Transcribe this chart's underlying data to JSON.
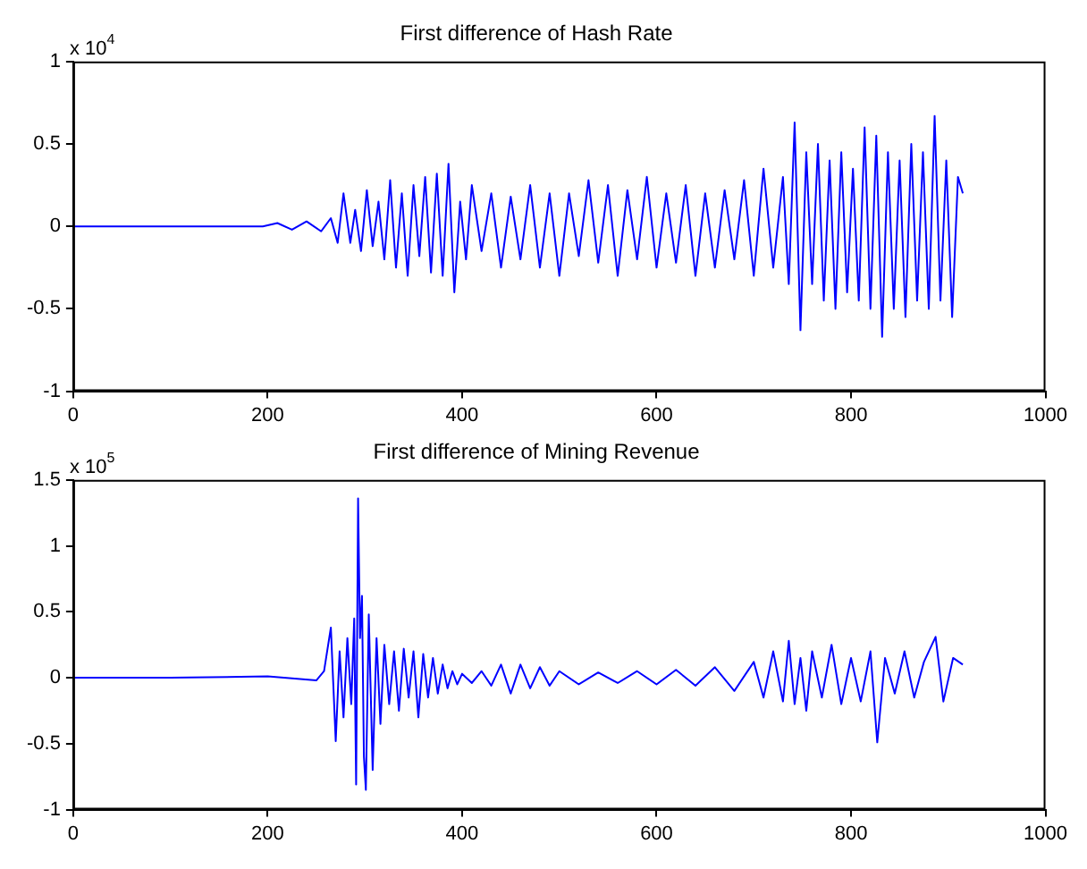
{
  "chart_data": [
    {
      "type": "line",
      "title": "First difference of Hash Rate",
      "annotations": [
        "x 10$^{4}$"
      ],
      "x": [
        0,
        100,
        195,
        210,
        225,
        240,
        255,
        265,
        272,
        278,
        285,
        290,
        296,
        302,
        308,
        314,
        320,
        326,
        332,
        338,
        344,
        350,
        356,
        362,
        368,
        374,
        380,
        386,
        392,
        398,
        404,
        410,
        420,
        430,
        440,
        450,
        460,
        470,
        480,
        490,
        500,
        510,
        520,
        530,
        540,
        550,
        560,
        570,
        580,
        590,
        600,
        610,
        620,
        630,
        640,
        650,
        660,
        670,
        680,
        690,
        700,
        710,
        720,
        730,
        736,
        742,
        748,
        754,
        760,
        766,
        772,
        778,
        784,
        790,
        796,
        802,
        808,
        814,
        820,
        826,
        832,
        838,
        844,
        850,
        856,
        862,
        868,
        874,
        880,
        886,
        892,
        898,
        904,
        910,
        915
      ],
      "series": [
        {
          "color": "#0000ff",
          "values": [
            0,
            0,
            0,
            0.02,
            -0.02,
            0.03,
            -0.03,
            0.05,
            -0.1,
            0.2,
            -0.1,
            0.1,
            -0.15,
            0.22,
            -0.12,
            0.15,
            -0.2,
            0.28,
            -0.25,
            0.2,
            -0.3,
            0.25,
            -0.18,
            0.3,
            -0.28,
            0.32,
            -0.3,
            0.38,
            -0.4,
            0.15,
            -0.2,
            0.25,
            -0.15,
            0.2,
            -0.25,
            0.18,
            -0.2,
            0.25,
            -0.25,
            0.2,
            -0.3,
            0.2,
            -0.18,
            0.28,
            -0.22,
            0.25,
            -0.3,
            0.22,
            -0.2,
            0.3,
            -0.25,
            0.2,
            -0.22,
            0.25,
            -0.3,
            0.2,
            -0.25,
            0.22,
            -0.2,
            0.28,
            -0.3,
            0.35,
            -0.25,
            0.3,
            -0.35,
            0.63,
            -0.63,
            0.45,
            -0.35,
            0.5,
            -0.45,
            0.4,
            -0.5,
            0.45,
            -0.4,
            0.35,
            -0.45,
            0.6,
            -0.5,
            0.55,
            -0.67,
            0.45,
            -0.5,
            0.4,
            -0.55,
            0.5,
            -0.45,
            0.45,
            -0.5,
            0.67,
            -0.45,
            0.4,
            -0.55,
            0.3,
            0.2
          ]
        }
      ],
      "xlim": [
        0,
        1000
      ],
      "xticks": [
        0,
        200,
        400,
        600,
        800,
        1000
      ],
      "ylim": [
        -1,
        1
      ],
      "yticks": [
        -1,
        -0.5,
        0,
        0.5,
        1
      ],
      "marker": "none",
      "line_style": "solid"
    },
    {
      "type": "line",
      "title": "First difference of Mining Revenue",
      "annotations": [
        "x 10$^{5}$"
      ],
      "x": [
        0,
        100,
        200,
        250,
        258,
        265,
        270,
        274,
        278,
        282,
        286,
        289,
        291,
        293,
        295,
        297,
        299,
        301,
        304,
        308,
        312,
        316,
        320,
        325,
        330,
        335,
        340,
        345,
        350,
        355,
        360,
        365,
        370,
        375,
        380,
        385,
        390,
        395,
        400,
        410,
        420,
        430,
        440,
        450,
        460,
        470,
        480,
        490,
        500,
        520,
        540,
        560,
        580,
        600,
        620,
        640,
        660,
        680,
        700,
        710,
        720,
        730,
        736,
        742,
        748,
        754,
        760,
        770,
        780,
        790,
        800,
        810,
        820,
        827,
        835,
        845,
        855,
        865,
        875,
        887,
        895,
        905,
        915
      ],
      "series": [
        {
          "color": "#0000ff",
          "values": [
            0,
            0,
            0.01,
            -0.02,
            0.05,
            0.38,
            -0.48,
            0.2,
            -0.3,
            0.3,
            -0.2,
            0.45,
            -0.81,
            1.36,
            0.3,
            0.62,
            -0.6,
            -0.85,
            0.48,
            -0.7,
            0.3,
            -0.35,
            0.25,
            -0.2,
            0.2,
            -0.25,
            0.22,
            -0.15,
            0.2,
            -0.3,
            0.18,
            -0.15,
            0.15,
            -0.12,
            0.1,
            -0.08,
            0.05,
            -0.05,
            0.03,
            -0.04,
            0.05,
            -0.06,
            0.1,
            -0.12,
            0.1,
            -0.08,
            0.08,
            -0.06,
            0.05,
            -0.05,
            0.04,
            -0.04,
            0.05,
            -0.05,
            0.06,
            -0.06,
            0.08,
            -0.1,
            0.12,
            -0.15,
            0.2,
            -0.18,
            0.28,
            -0.2,
            0.15,
            -0.25,
            0.2,
            -0.15,
            0.25,
            -0.2,
            0.15,
            -0.18,
            0.2,
            -0.49,
            0.15,
            -0.12,
            0.2,
            -0.15,
            0.12,
            0.31,
            -0.18,
            0.15,
            0.1
          ]
        }
      ],
      "xlim": [
        0,
        1000
      ],
      "xticks": [
        0,
        200,
        400,
        600,
        800,
        1000
      ],
      "ylim": [
        -1,
        1.5
      ],
      "yticks": [
        -1,
        -0.5,
        0,
        0.5,
        1,
        1.5
      ],
      "marker": "none",
      "line_style": "solid"
    }
  ]
}
